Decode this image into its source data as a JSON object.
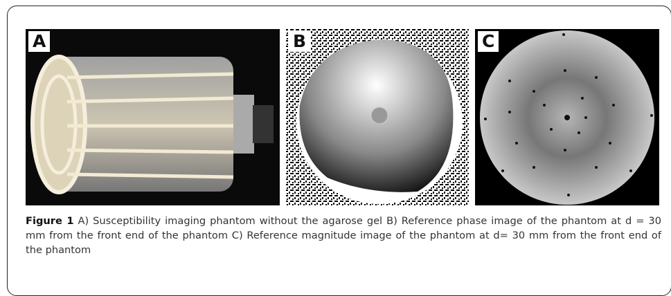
{
  "panels": [
    {
      "label": "A"
    },
    {
      "label": "B"
    },
    {
      "label": "C"
    }
  ],
  "caption": {
    "label": "Figure 1",
    "text": "A) Susceptibility imaging phantom without the agarose gel B) Reference phase image of the phantom at d = 30 mm from the front end of the phantom C) Reference magnitude image of the phantom at d= 30 mm from the front end of the phantom"
  }
}
